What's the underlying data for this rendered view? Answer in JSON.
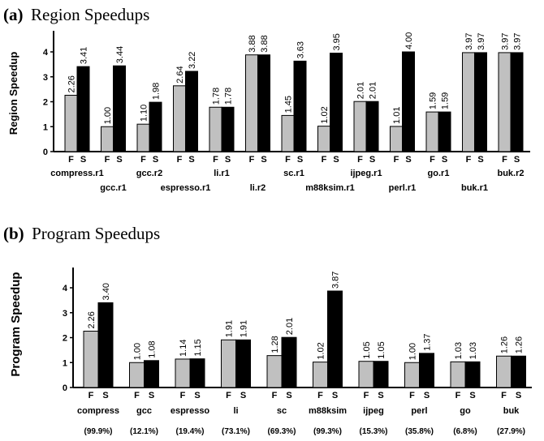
{
  "chart_data": [
    {
      "type": "bar",
      "title_prefix": "(a)",
      "title": "Region Speedups",
      "ylabel": "Region Speedup",
      "ylim": [
        0,
        4
      ],
      "yticks": [
        "0",
        "1",
        "2",
        "3",
        "4"
      ],
      "grid": false,
      "bar_labels": [
        "F",
        "S"
      ],
      "categories": [
        "compress.r1",
        "gcc.r1",
        "gcc.r2",
        "espresso.r1",
        "li.r1",
        "li.r2",
        "sc.r1",
        "m88ksim.r1",
        "ijpeg.r1",
        "perl.r1",
        "go.r1",
        "buk.r1",
        "buk.r2"
      ],
      "series": [
        {
          "name": "F",
          "color": "#c0c0c0",
          "values": [
            2.26,
            1.0,
            1.1,
            2.64,
            1.78,
            3.88,
            1.45,
            1.02,
            2.01,
            1.01,
            1.59,
            3.97,
            3.97
          ],
          "labels": [
            "2.26",
            "1.00",
            "1.10",
            "2.64",
            "1.78",
            "3.88",
            "1.45",
            "1.02",
            "2.01",
            "1.01",
            "1.59",
            "3.97",
            "3.97"
          ]
        },
        {
          "name": "S",
          "color": "#000000",
          "values": [
            3.41,
            3.44,
            1.98,
            3.22,
            1.78,
            3.88,
            3.63,
            3.95,
            2.01,
            4.0,
            1.59,
            3.97,
            3.97
          ],
          "labels": [
            "3.41",
            "3.44",
            "1.98",
            "3.22",
            "1.78",
            "3.88",
            "3.63",
            "3.95",
            "2.01",
            "4.00",
            "1.59",
            "3.97",
            "3.97"
          ]
        }
      ]
    },
    {
      "type": "bar",
      "title_prefix": "(b)",
      "title": "Program Speedups",
      "ylabel": "Program Speedup",
      "ylim": [
        0,
        4
      ],
      "yticks": [
        "0",
        "1",
        "2",
        "3",
        "4"
      ],
      "grid": false,
      "bar_labels": [
        "F",
        "S"
      ],
      "categories": [
        "compress",
        "gcc",
        "espresso",
        "li",
        "sc",
        "m88ksim",
        "ijpeg",
        "perl",
        "go",
        "buk"
      ],
      "coverage": [
        "(99.9%)",
        "(12.1%)",
        "(19.4%)",
        "(73.1%)",
        "(69.3%)",
        "(99.3%)",
        "(15.3%)",
        "(35.8%)",
        "(6.8%)",
        "(27.9%)"
      ],
      "series": [
        {
          "name": "F",
          "color": "#c0c0c0",
          "values": [
            2.26,
            1.0,
            1.14,
            1.91,
            1.28,
            1.02,
            1.05,
            1.0,
            1.03,
            1.26
          ],
          "labels": [
            "2.26",
            "1.00",
            "1.14",
            "1.91",
            "1.28",
            "1.02",
            "1.05",
            "1.00",
            "1.03",
            "1.26"
          ]
        },
        {
          "name": "S",
          "color": "#000000",
          "values": [
            3.4,
            1.08,
            1.15,
            1.91,
            2.01,
            3.87,
            1.05,
            1.37,
            1.03,
            1.26
          ],
          "labels": [
            "3.40",
            "1.08",
            "1.15",
            "1.91",
            "2.01",
            "3.87",
            "1.05",
            "1.37",
            "1.03",
            "1.26"
          ]
        }
      ]
    }
  ]
}
